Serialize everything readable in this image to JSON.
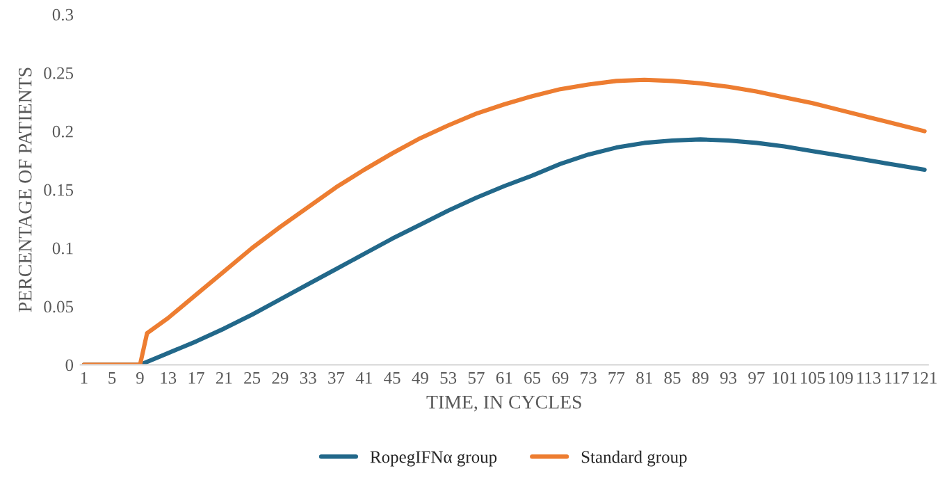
{
  "chart_data": {
    "type": "line",
    "xlabel": "TIME, IN CYCLES",
    "ylabel": "PERCENTAGE OF PATIENTS",
    "xlim": [
      0.5,
      121.5
    ],
    "xticks": [
      1,
      5,
      9,
      13,
      17,
      21,
      25,
      29,
      33,
      37,
      41,
      45,
      49,
      53,
      57,
      61,
      65,
      69,
      73,
      77,
      81,
      85,
      89,
      93,
      97,
      101,
      105,
      109,
      113,
      117,
      121
    ],
    "ylim": [
      0,
      0.3
    ],
    "yticks": [
      {
        "value": 0,
        "label": "0"
      },
      {
        "value": 0.05,
        "label": "0.05"
      },
      {
        "value": 0.1,
        "label": "0.1"
      },
      {
        "value": 0.15,
        "label": "0.15"
      },
      {
        "value": 0.2,
        "label": "0.2"
      },
      {
        "value": 0.25,
        "label": "0.25"
      },
      {
        "value": 0.3,
        "label": "0.3"
      }
    ],
    "grid": false,
    "legend": "bottom",
    "marker": "none",
    "line_style": "solid",
    "series": [
      {
        "name": "RopegIFNα group",
        "color": "#22688a",
        "x": [
          1,
          9,
          13,
          17,
          21,
          25,
          29,
          33,
          37,
          41,
          45,
          49,
          53,
          57,
          61,
          65,
          69,
          73,
          77,
          81,
          85,
          89,
          93,
          97,
          101,
          105,
          109,
          113,
          117,
          121
        ],
        "values": [
          0,
          0,
          0.01,
          0.02,
          0.031,
          0.043,
          0.056,
          0.069,
          0.082,
          0.095,
          0.108,
          0.12,
          0.132,
          0.143,
          0.153,
          0.162,
          0.172,
          0.18,
          0.186,
          0.19,
          0.192,
          0.193,
          0.192,
          0.19,
          0.187,
          0.183,
          0.179,
          0.175,
          0.171,
          0.167
        ]
      },
      {
        "name": "Standard group",
        "color": "#ed7d31",
        "x": [
          1,
          9,
          10,
          13,
          17,
          21,
          25,
          29,
          33,
          37,
          41,
          45,
          49,
          53,
          57,
          61,
          65,
          69,
          73,
          77,
          81,
          85,
          89,
          93,
          97,
          101,
          105,
          109,
          113,
          117,
          121
        ],
        "values": [
          0,
          0,
          0.027,
          0.04,
          0.06,
          0.08,
          0.1,
          0.118,
          0.135,
          0.152,
          0.167,
          0.181,
          0.194,
          0.205,
          0.215,
          0.223,
          0.23,
          0.236,
          0.24,
          0.243,
          0.244,
          0.243,
          0.241,
          0.238,
          0.234,
          0.229,
          0.224,
          0.218,
          0.212,
          0.206,
          0.2
        ]
      }
    ]
  }
}
